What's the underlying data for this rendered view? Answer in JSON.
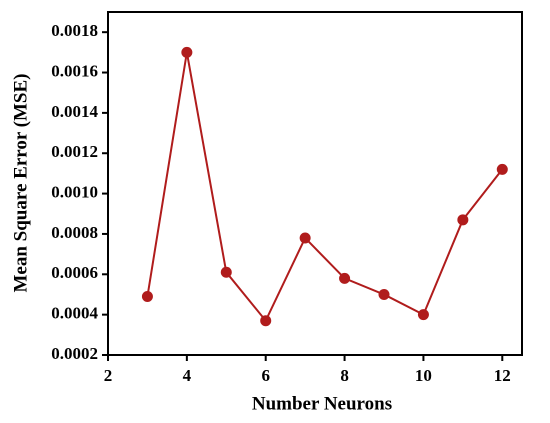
{
  "chart_data": {
    "type": "line",
    "xlabel": "Number Neurons",
    "ylabel": "Mean Square Error (MSE)",
    "x": [
      3,
      4,
      5,
      6,
      7,
      8,
      9,
      10,
      11,
      12
    ],
    "series": [
      {
        "color": "#b01c1c",
        "values": [
          0.00049,
          0.0017,
          0.00061,
          0.00037,
          0.00078,
          0.00058,
          0.0005,
          0.0004,
          0.00087,
          0.00112
        ]
      }
    ],
    "xlim": [
      2,
      12.5
    ],
    "xticks": [
      2,
      4,
      6,
      8,
      10,
      12
    ],
    "ylim": [
      0.0002,
      0.0019
    ],
    "yticks": [
      0.0002,
      0.0004,
      0.0006,
      0.0008,
      {
        "value": 0.001,
        "label": "0.0010"
      },
      0.0012,
      0.0014,
      0.0016,
      0.0018
    ]
  }
}
